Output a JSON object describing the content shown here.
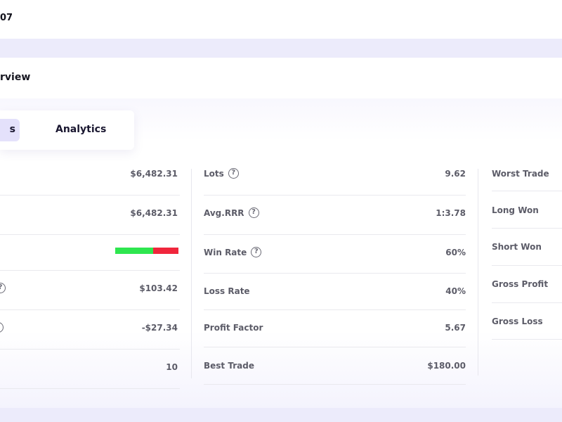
{
  "header": {
    "account_id": "07"
  },
  "overview": {
    "title": "rview"
  },
  "tabs": {
    "active": "s",
    "analytics": "Analytics"
  },
  "col1": {
    "rows": [
      {
        "value": "$6,482.31"
      },
      {
        "value": "$6,482.31"
      },
      {
        "win_fraction": 0.6,
        "loss_fraction": 0.4
      },
      {
        "value": "$103.42"
      },
      {
        "value": "-$27.34"
      },
      {
        "value": "10"
      }
    ]
  },
  "col2": {
    "rows": [
      {
        "label": "Lots",
        "value": "9.62",
        "help": "?"
      },
      {
        "label": "Avg.RRR",
        "value": "1:3.78",
        "help": "?"
      },
      {
        "label": "Win Rate",
        "value": "60%",
        "help": "?"
      },
      {
        "label": "Loss Rate",
        "value": "40%"
      },
      {
        "label": "Profit Factor",
        "value": "5.67"
      },
      {
        "label": "Best Trade",
        "value": "$180.00"
      }
    ]
  },
  "col3": {
    "rows": [
      {
        "label": "Worst Trade"
      },
      {
        "label": "Long Won"
      },
      {
        "label": "Short Won"
      },
      {
        "label": "Gross Profit"
      },
      {
        "label": "Gross Loss"
      }
    ]
  },
  "colors": {
    "win_bar": "#2ee64f",
    "loss_bar": "#f0263c",
    "band": "#ecebfb",
    "active_tab": "#e4e1fb"
  }
}
